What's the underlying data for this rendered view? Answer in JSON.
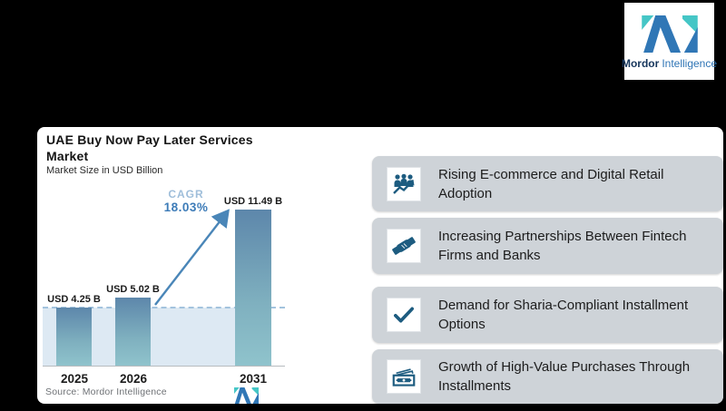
{
  "chart_data": {
    "type": "bar",
    "title": "UAE Buy Now Pay Later Services Market",
    "title_line1": "UAE Buy Now Pay Later Services",
    "title_line2": "Market",
    "subtitle": "Market Size in USD Billion",
    "categories": [
      "2025",
      "2026",
      "2031"
    ],
    "values": [
      4.25,
      5.02,
      11.49
    ],
    "value_labels": [
      "USD 4.25 B",
      "USD 5.02 B",
      "USD 11.49 B"
    ],
    "ylim": [
      0,
      12.5
    ],
    "grid": false,
    "reference_line_value": 4.25,
    "annotations": [
      {
        "label": "CAGR",
        "value": "18.03%"
      }
    ],
    "source": "Source: Mordor Intelligence",
    "bar_gradient_top": "#5d87ab",
    "bar_gradient_bottom": "#8fc3cc",
    "band_color": "#dde9f3",
    "dash_color": "#a3c3de",
    "arrow_color": "#4a86b8"
  },
  "cagr": {
    "label": "CAGR",
    "value": "18.03%"
  },
  "drivers": [
    {
      "icon": "people-growth-icon",
      "text": "Rising E-commerce and Digital Retail Adoption"
    },
    {
      "icon": "handshake-icon",
      "text": "Increasing Partnerships Between Fintech Firms and Banks"
    },
    {
      "icon": "checkmark-icon",
      "text": "Demand for Sharia-Compliant Installment Options"
    },
    {
      "icon": "banknotes-icon",
      "text": "Growth of High-Value Purchases Through Installments"
    }
  ],
  "drivers_style": {
    "row_bg": "#ced3d8",
    "icon_color": "#1d5c80"
  },
  "brand": {
    "name_bold": "Mordor",
    "name_light": "Intelligence",
    "mark_blue": "#3077b6",
    "mark_teal": "#45c6c6"
  }
}
